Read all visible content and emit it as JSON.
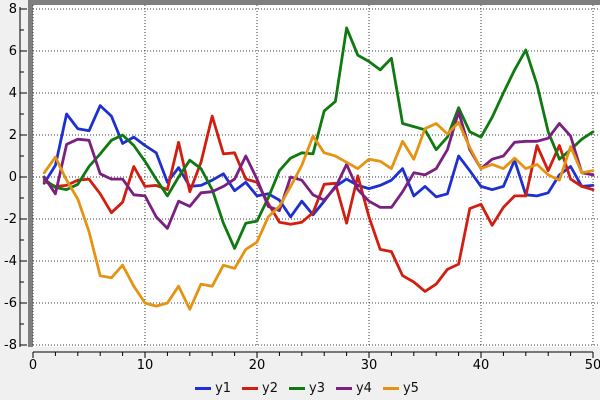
{
  "chart_data": {
    "type": "line",
    "title": "",
    "xlabel": "",
    "ylabel": "",
    "xlim": [
      0,
      50
    ],
    "ylim": [
      -8,
      8
    ],
    "x_start": 1,
    "x_major_ticks": [
      0,
      10,
      20,
      30,
      40,
      50
    ],
    "x_tick_labels": [
      "0",
      "10",
      "20",
      "30",
      "40",
      "50"
    ],
    "x_minor_step": 2,
    "y_major_ticks": [
      8,
      6,
      4,
      2,
      0,
      -2,
      -4,
      -6,
      -8
    ],
    "y_tick_labels": [
      "8",
      "6",
      "4",
      "2",
      "0",
      "-2",
      "-4",
      "-6",
      "-8"
    ],
    "y_minor_step": 1,
    "grid": "dotted",
    "legend_position": "bottom",
    "series": [
      {
        "name": "y1",
        "color": "#1e30cf",
        "values": [
          -0.3,
          0.55,
          3.0,
          2.3,
          2.2,
          3.4,
          2.9,
          1.6,
          1.9,
          1.5,
          1.15,
          -0.25,
          0.45,
          -0.45,
          -0.4,
          -0.15,
          0.15,
          -0.65,
          -0.25,
          -0.9,
          -0.8,
          -1.1,
          -1.9,
          -1.15,
          -1.8,
          -1.15,
          -0.45,
          -0.1,
          -0.4,
          -0.55,
          -0.4,
          -0.15,
          0.4,
          -0.9,
          -0.45,
          -0.95,
          -0.8,
          1.0,
          0.3,
          -0.45,
          -0.6,
          -0.45,
          0.8,
          -0.85,
          -0.9,
          -0.75,
          0.1,
          0.5,
          -0.45,
          -0.4
        ]
      },
      {
        "name": "y2",
        "color": "#d01f10",
        "values": [
          -0.2,
          -0.45,
          -0.4,
          -0.15,
          -0.1,
          -0.8,
          -1.7,
          -1.2,
          0.5,
          -0.45,
          -0.4,
          -0.6,
          1.65,
          -0.7,
          0.7,
          2.9,
          1.1,
          1.15,
          -0.1,
          -0.25,
          -1.25,
          -2.15,
          -2.25,
          -2.15,
          -1.7,
          -0.35,
          -0.3,
          -2.2,
          0.05,
          -1.9,
          -3.45,
          -3.55,
          -4.7,
          -5.0,
          -5.45,
          -5.1,
          -4.4,
          -4.15,
          -1.5,
          -1.3,
          -2.3,
          -1.45,
          -0.9,
          -0.9,
          1.5,
          0.3,
          1.5,
          -0.1,
          -0.45,
          -0.6
        ]
      },
      {
        "name": "y3",
        "color": "#0e7a10",
        "values": [
          -0.1,
          -0.5,
          -0.6,
          -0.35,
          0.5,
          1.1,
          1.75,
          2.0,
          1.5,
          0.75,
          -0.1,
          -0.9,
          0.0,
          0.8,
          0.4,
          -0.6,
          -2.2,
          -3.4,
          -2.2,
          -2.1,
          -1.0,
          0.3,
          0.9,
          1.15,
          1.1,
          3.15,
          3.6,
          7.1,
          5.8,
          5.5,
          5.1,
          5.65,
          2.55,
          2.4,
          2.25,
          1.3,
          1.9,
          3.3,
          2.15,
          1.9,
          2.85,
          4.0,
          5.1,
          6.05,
          4.4,
          2.15,
          0.85,
          1.3,
          1.8,
          2.15
        ]
      },
      {
        "name": "y4",
        "color": "#7a2081",
        "values": [
          0.0,
          -0.8,
          1.55,
          1.8,
          1.75,
          0.15,
          -0.1,
          -0.1,
          -0.85,
          -0.9,
          -1.9,
          -2.45,
          -1.15,
          -1.4,
          -0.75,
          -0.7,
          -0.45,
          -0.1,
          1.0,
          -0.1,
          -1.4,
          -1.6,
          0.0,
          -0.15,
          -0.85,
          -1.1,
          -0.5,
          0.6,
          -0.6,
          -1.15,
          -1.45,
          -1.45,
          -0.7,
          0.2,
          0.1,
          0.4,
          1.3,
          3.1,
          1.3,
          0.4,
          0.85,
          1.0,
          1.65,
          1.7,
          1.7,
          1.85,
          2.55,
          1.95,
          0.2,
          0.1
        ]
      },
      {
        "name": "y5",
        "color": "#e49312",
        "values": [
          0.2,
          0.95,
          -0.15,
          -1.05,
          -2.6,
          -4.7,
          -4.8,
          -4.2,
          -5.2,
          -6.0,
          -6.15,
          -6.0,
          -5.2,
          -6.3,
          -5.1,
          -5.2,
          -4.2,
          -4.35,
          -3.45,
          -3.1,
          -1.9,
          -1.4,
          -0.45,
          0.55,
          1.95,
          1.15,
          1.0,
          0.7,
          0.4,
          0.85,
          0.75,
          0.4,
          1.7,
          0.85,
          2.3,
          2.55,
          2.05,
          2.6,
          1.4,
          0.4,
          0.6,
          0.4,
          0.9,
          0.4,
          0.6,
          0.1,
          -0.15,
          1.45,
          0.2,
          0.3
        ]
      }
    ],
    "legend": {
      "items": [
        {
          "label": "y1",
          "color": "#1e30cf"
        },
        {
          "label": "y2",
          "color": "#d01f10"
        },
        {
          "label": "y3",
          "color": "#0e7a10"
        },
        {
          "label": "y4",
          "color": "#7a2081"
        },
        {
          "label": "y5",
          "color": "#e49312"
        }
      ]
    },
    "style": {
      "canvas_bg": "#f0f0f0",
      "plot_bg": "#ffffff",
      "frame_color": "#7f7f7f",
      "grid_color": "#3c3c3c",
      "axis_color": "#000000",
      "text_color": "#000000"
    }
  }
}
